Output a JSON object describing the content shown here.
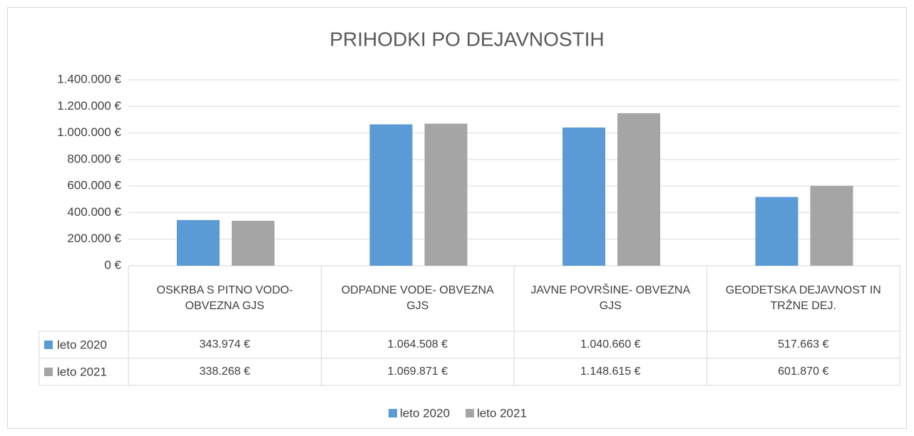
{
  "chart_data": {
    "type": "bar",
    "title": "PRIHODKI PO DEJAVNOSTIH",
    "categories": [
      "OSKRBA S PITNO VODO- OBVEZNA GJS",
      "ODPADNE VODE- OBVEZNA GJS",
      "JAVNE POVRŠINE- OBVEZNA GJS",
      "GEODETSKA DEJAVNOST IN TRŽNE DEJ."
    ],
    "series": [
      {
        "name": "leto 2020",
        "color": "#5b9bd5",
        "values": [
          343974,
          1064508,
          1040660,
          517663
        ],
        "value_labels": [
          "343.974 €",
          "1.064.508 €",
          "1.040.660 €",
          "517.663 €"
        ]
      },
      {
        "name": "leto 2021",
        "color": "#a5a5a5",
        "values": [
          338268,
          1069871,
          1148615,
          601870
        ],
        "value_labels": [
          "338.268 €",
          "1.069.871 €",
          "1.148.615 €",
          "601.870 €"
        ]
      }
    ],
    "ylim": [
      0,
      1400000
    ],
    "yticks": [
      {
        "value": 0,
        "label": "0 €"
      },
      {
        "value": 200000,
        "label": "200.000 €"
      },
      {
        "value": 400000,
        "label": "400.000 €"
      },
      {
        "value": 600000,
        "label": "600.000 €"
      },
      {
        "value": 800000,
        "label": "800.000 €"
      },
      {
        "value": 1000000,
        "label": "1.000.000 €"
      },
      {
        "value": 1200000,
        "label": "1.200.000 €"
      },
      {
        "value": 1400000,
        "label": "1.400.000 €"
      }
    ],
    "grid": true,
    "data_table": true,
    "legend": "bottom"
  }
}
